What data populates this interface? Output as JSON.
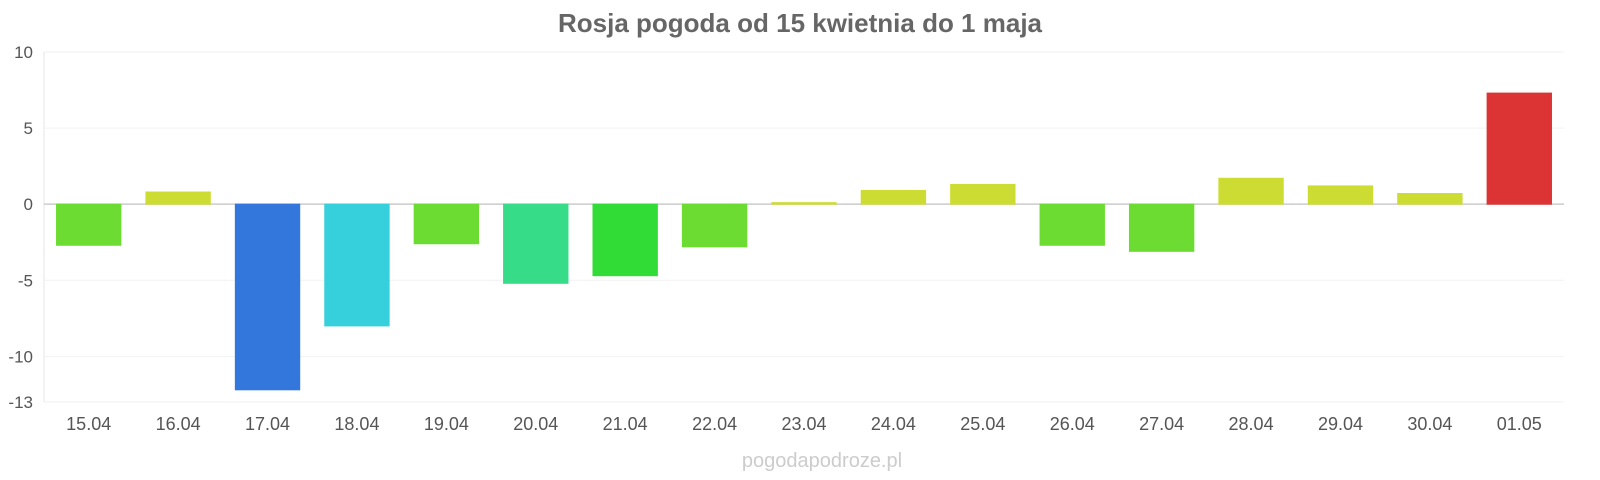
{
  "chart_data": {
    "type": "bar",
    "title": "Rosja pogoda od 15 kwietnia do 1 maja",
    "xlabel": "",
    "ylabel": "",
    "categories": [
      "15.04",
      "16.04",
      "17.04",
      "18.04",
      "19.04",
      "20.04",
      "21.04",
      "22.04",
      "23.04",
      "24.04",
      "25.04",
      "26.04",
      "27.04",
      "28.04",
      "29.04",
      "30.04",
      "01.05"
    ],
    "values": [
      -2.7,
      0.8,
      -12.2,
      -8.0,
      -2.6,
      -5.2,
      -4.7,
      -2.8,
      0.1,
      0.9,
      1.3,
      -2.7,
      -3.1,
      1.7,
      1.2,
      0.7,
      7.3
    ],
    "colors": [
      "#6ddc32",
      "#cddc32",
      "#3477dc",
      "#36cfdc",
      "#6ddc32",
      "#36dc88",
      "#32dc36",
      "#6ddc32",
      "#cddc32",
      "#cddc32",
      "#cddc32",
      "#6ddc32",
      "#6ddc32",
      "#cddc32",
      "#cddc32",
      "#cddc32",
      "#dc3434"
    ],
    "ylim": [
      -13,
      10
    ],
    "yticks": [
      "10",
      "5",
      "0",
      "-5",
      "-10",
      "-13"
    ],
    "ytick_values": [
      10,
      5,
      0,
      -5,
      -10,
      -13
    ],
    "grid": true,
    "legend": "none"
  },
  "footer": "pogodapodroze.pl"
}
